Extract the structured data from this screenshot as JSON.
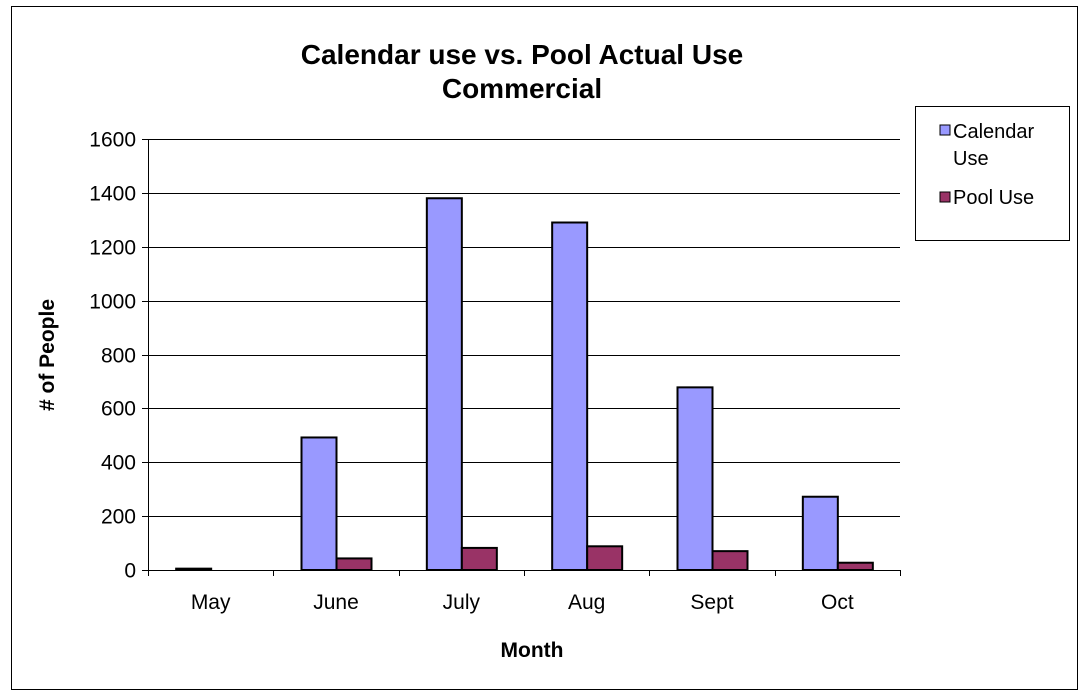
{
  "chart_data": {
    "type": "bar",
    "title_lines": [
      "Calendar use vs. Pool Actual Use",
      "Commercial"
    ],
    "xlabel": "Month",
    "ylabel": "# of People",
    "categories": [
      "May",
      "June",
      "July",
      "Aug",
      "Sept",
      "Oct"
    ],
    "ylim": [
      0,
      1600
    ],
    "yticks": [
      0,
      200,
      400,
      600,
      800,
      1000,
      1200,
      1400,
      1600
    ],
    "grid": true,
    "legend_position": "right",
    "legend_labels": [
      [
        "Calendar",
        "Use"
      ],
      [
        "Pool Use"
      ]
    ],
    "series": [
      {
        "name": "Calendar Use",
        "color": "#9999FF",
        "values": [
          5,
          492,
          1380,
          1290,
          678,
          272
        ]
      },
      {
        "name": "Pool Use",
        "color": "#993366",
        "values": [
          0,
          43,
          82,
          88,
          70,
          27
        ]
      }
    ]
  }
}
